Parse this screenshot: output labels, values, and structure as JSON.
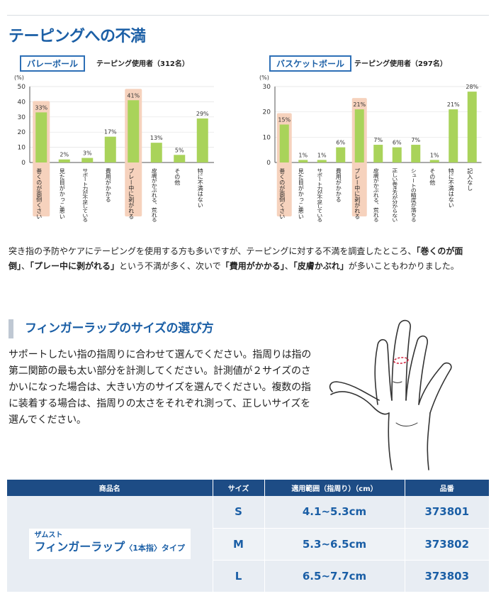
{
  "page_title": "テーピングへの不満",
  "chart_data": [
    {
      "type": "bar",
      "tag": "バレーボール",
      "users": "テーピング使用者（312名）",
      "unit": "(%)",
      "ylim": [
        0,
        50
      ],
      "yticks": [
        0,
        10,
        20,
        30,
        40,
        50
      ],
      "categories": [
        "巻くのが面倒くさい",
        "見た目がかっこ悪い",
        "サポート力が不足している",
        "費用がかかる",
        "プレー中に剥がれる",
        "皮膚がかぶれる、荒れる",
        "その他",
        "特に不満はない"
      ],
      "values": [
        33,
        2,
        3,
        17,
        41,
        13,
        5,
        29
      ],
      "value_labels": [
        "33%",
        "2%",
        "3%",
        "17%",
        "41%",
        "13%",
        "5%",
        "29%"
      ],
      "highlighted": [
        0,
        4
      ],
      "bar_color": "#a9d35a",
      "highlight_color": "#f6d2bd"
    },
    {
      "type": "bar",
      "tag": "バスケットボール",
      "users": "テーピング使用者（297名）",
      "unit": "(%)",
      "ylim": [
        0,
        30
      ],
      "yticks": [
        0,
        10,
        20,
        30
      ],
      "categories": [
        "巻くのが面倒くさい",
        "見た目がかっこ悪い",
        "サポート力が不足している",
        "費用がかかる",
        "プレー中に剥がれる",
        "皮膚がかぶれる、荒れる",
        "正しい巻き方が分からない",
        "シュートの精度が落ちる",
        "その他",
        "特に不満はない",
        "記入なし"
      ],
      "values": [
        15,
        1,
        1,
        6,
        21,
        7,
        6,
        7,
        1,
        21,
        28
      ],
      "value_labels": [
        "15%",
        "1%",
        "1%",
        "6%",
        "21%",
        "7%",
        "6%",
        "7%",
        "1%",
        "21%",
        "28%"
      ],
      "highlighted": [
        0,
        4
      ],
      "bar_color": "#a9d35a",
      "highlight_color": "#f6d2bd"
    }
  ],
  "summary": {
    "t1": "突き指の予防やケアにテーピングを使用する方も多いですが、テーピングに対する不満を調査したところ、",
    "b1": "「巻くのが面倒」",
    "t2": "、",
    "b2": "「プレー中に剥がれる」",
    "t3": "という不満が多く、次いで",
    "b3": "「費用がかかる」",
    "t4": "、",
    "b4": "「皮膚かぶれ」",
    "t5": "が多いこともわかりました。"
  },
  "section2_title": "フィンガーラップのサイズの選び方",
  "section2_body": "サポートしたい指の指周りに合わせて選んでください。指周りは指の第二関節の最も太い部分を計測してください。計測値が２サイズのさかいになった場合は、大きい方のサイズを選んでください。複数の指に装着する場合は、指周りの太さをそれぞれ測って、正しいサイズを選んでください。",
  "table": {
    "headers": [
      "商品名",
      "サイズ",
      "適用範囲（指周り）（cm）",
      "品番"
    ],
    "product_brand": "ザムスト",
    "product_name_main": "フィンガーラップ",
    "product_name_sub": "〈1本指〉タイプ",
    "rows": [
      {
        "size": "S",
        "range": "4.1~5.3cm",
        "code": "373801"
      },
      {
        "size": "M",
        "range": "5.3~6.5cm",
        "code": "373802"
      },
      {
        "size": "L",
        "range": "6.5~7.7cm",
        "code": "373803"
      }
    ]
  }
}
